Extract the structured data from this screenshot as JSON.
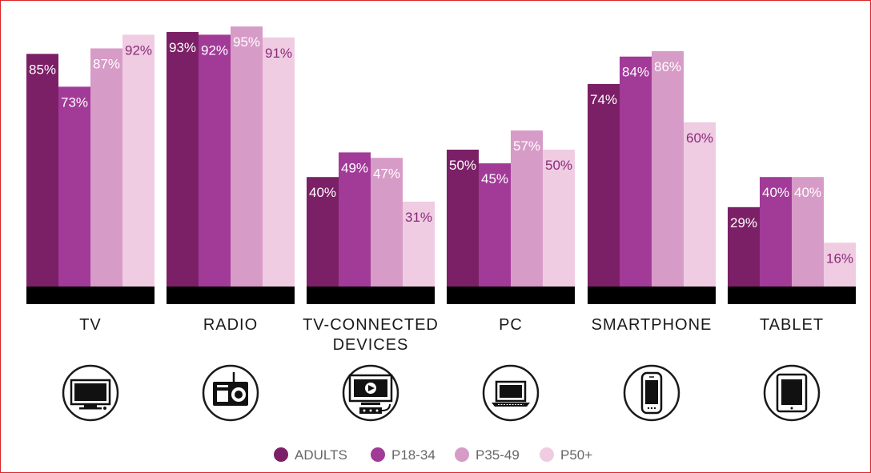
{
  "chart_data": {
    "type": "bar",
    "categories": [
      "TV",
      "RADIO",
      "TV-CONNECTED DEVICES",
      "PC",
      "SMARTPHONE",
      "TABLET"
    ],
    "category_lines": [
      [
        "TV"
      ],
      [
        "RADIO"
      ],
      [
        "TV-CONNECTED",
        "DEVICES"
      ],
      [
        "PC"
      ],
      [
        "SMARTPHONE"
      ],
      [
        "TABLET"
      ]
    ],
    "icons": [
      "tv-icon",
      "radio-icon",
      "tv-connected-device-icon",
      "laptop-icon",
      "smartphone-icon",
      "tablet-icon"
    ],
    "series": [
      {
        "name": "ADULTS",
        "values": [
          85,
          93,
          40,
          50,
          74,
          29
        ],
        "labels": [
          "85%",
          "93%",
          "40%",
          "50%",
          "74%",
          "29%"
        ],
        "color": "#7b2066",
        "label_color": "#ffffff"
      },
      {
        "name": "P18-34",
        "values": [
          73,
          92,
          49,
          45,
          84,
          40
        ],
        "labels": [
          "73%",
          "92%",
          "49%",
          "45%",
          "84%",
          "40%"
        ],
        "color": "#a23a98",
        "label_color": "#ffffff"
      },
      {
        "name": "P35-49",
        "values": [
          87,
          95,
          47,
          57,
          86,
          40
        ],
        "labels": [
          "87%",
          "95%",
          "47%",
          "57%",
          "86%",
          "40%"
        ],
        "color": "#d79bc7",
        "label_color": "#ffffff"
      },
      {
        "name": "P50+",
        "values": [
          92,
          91,
          31,
          50,
          60,
          16
        ],
        "labels": [
          "92%",
          "91%",
          "31%",
          "50%",
          "60%",
          "16%"
        ],
        "color": "#efcce2",
        "label_color": "#8b2a7a"
      }
    ],
    "value_suffix": "%",
    "ylim": [
      0,
      100
    ],
    "grid": false,
    "legend_position": "bottom",
    "baseline_color": "#000000",
    "frame_color": "#d9262a"
  }
}
